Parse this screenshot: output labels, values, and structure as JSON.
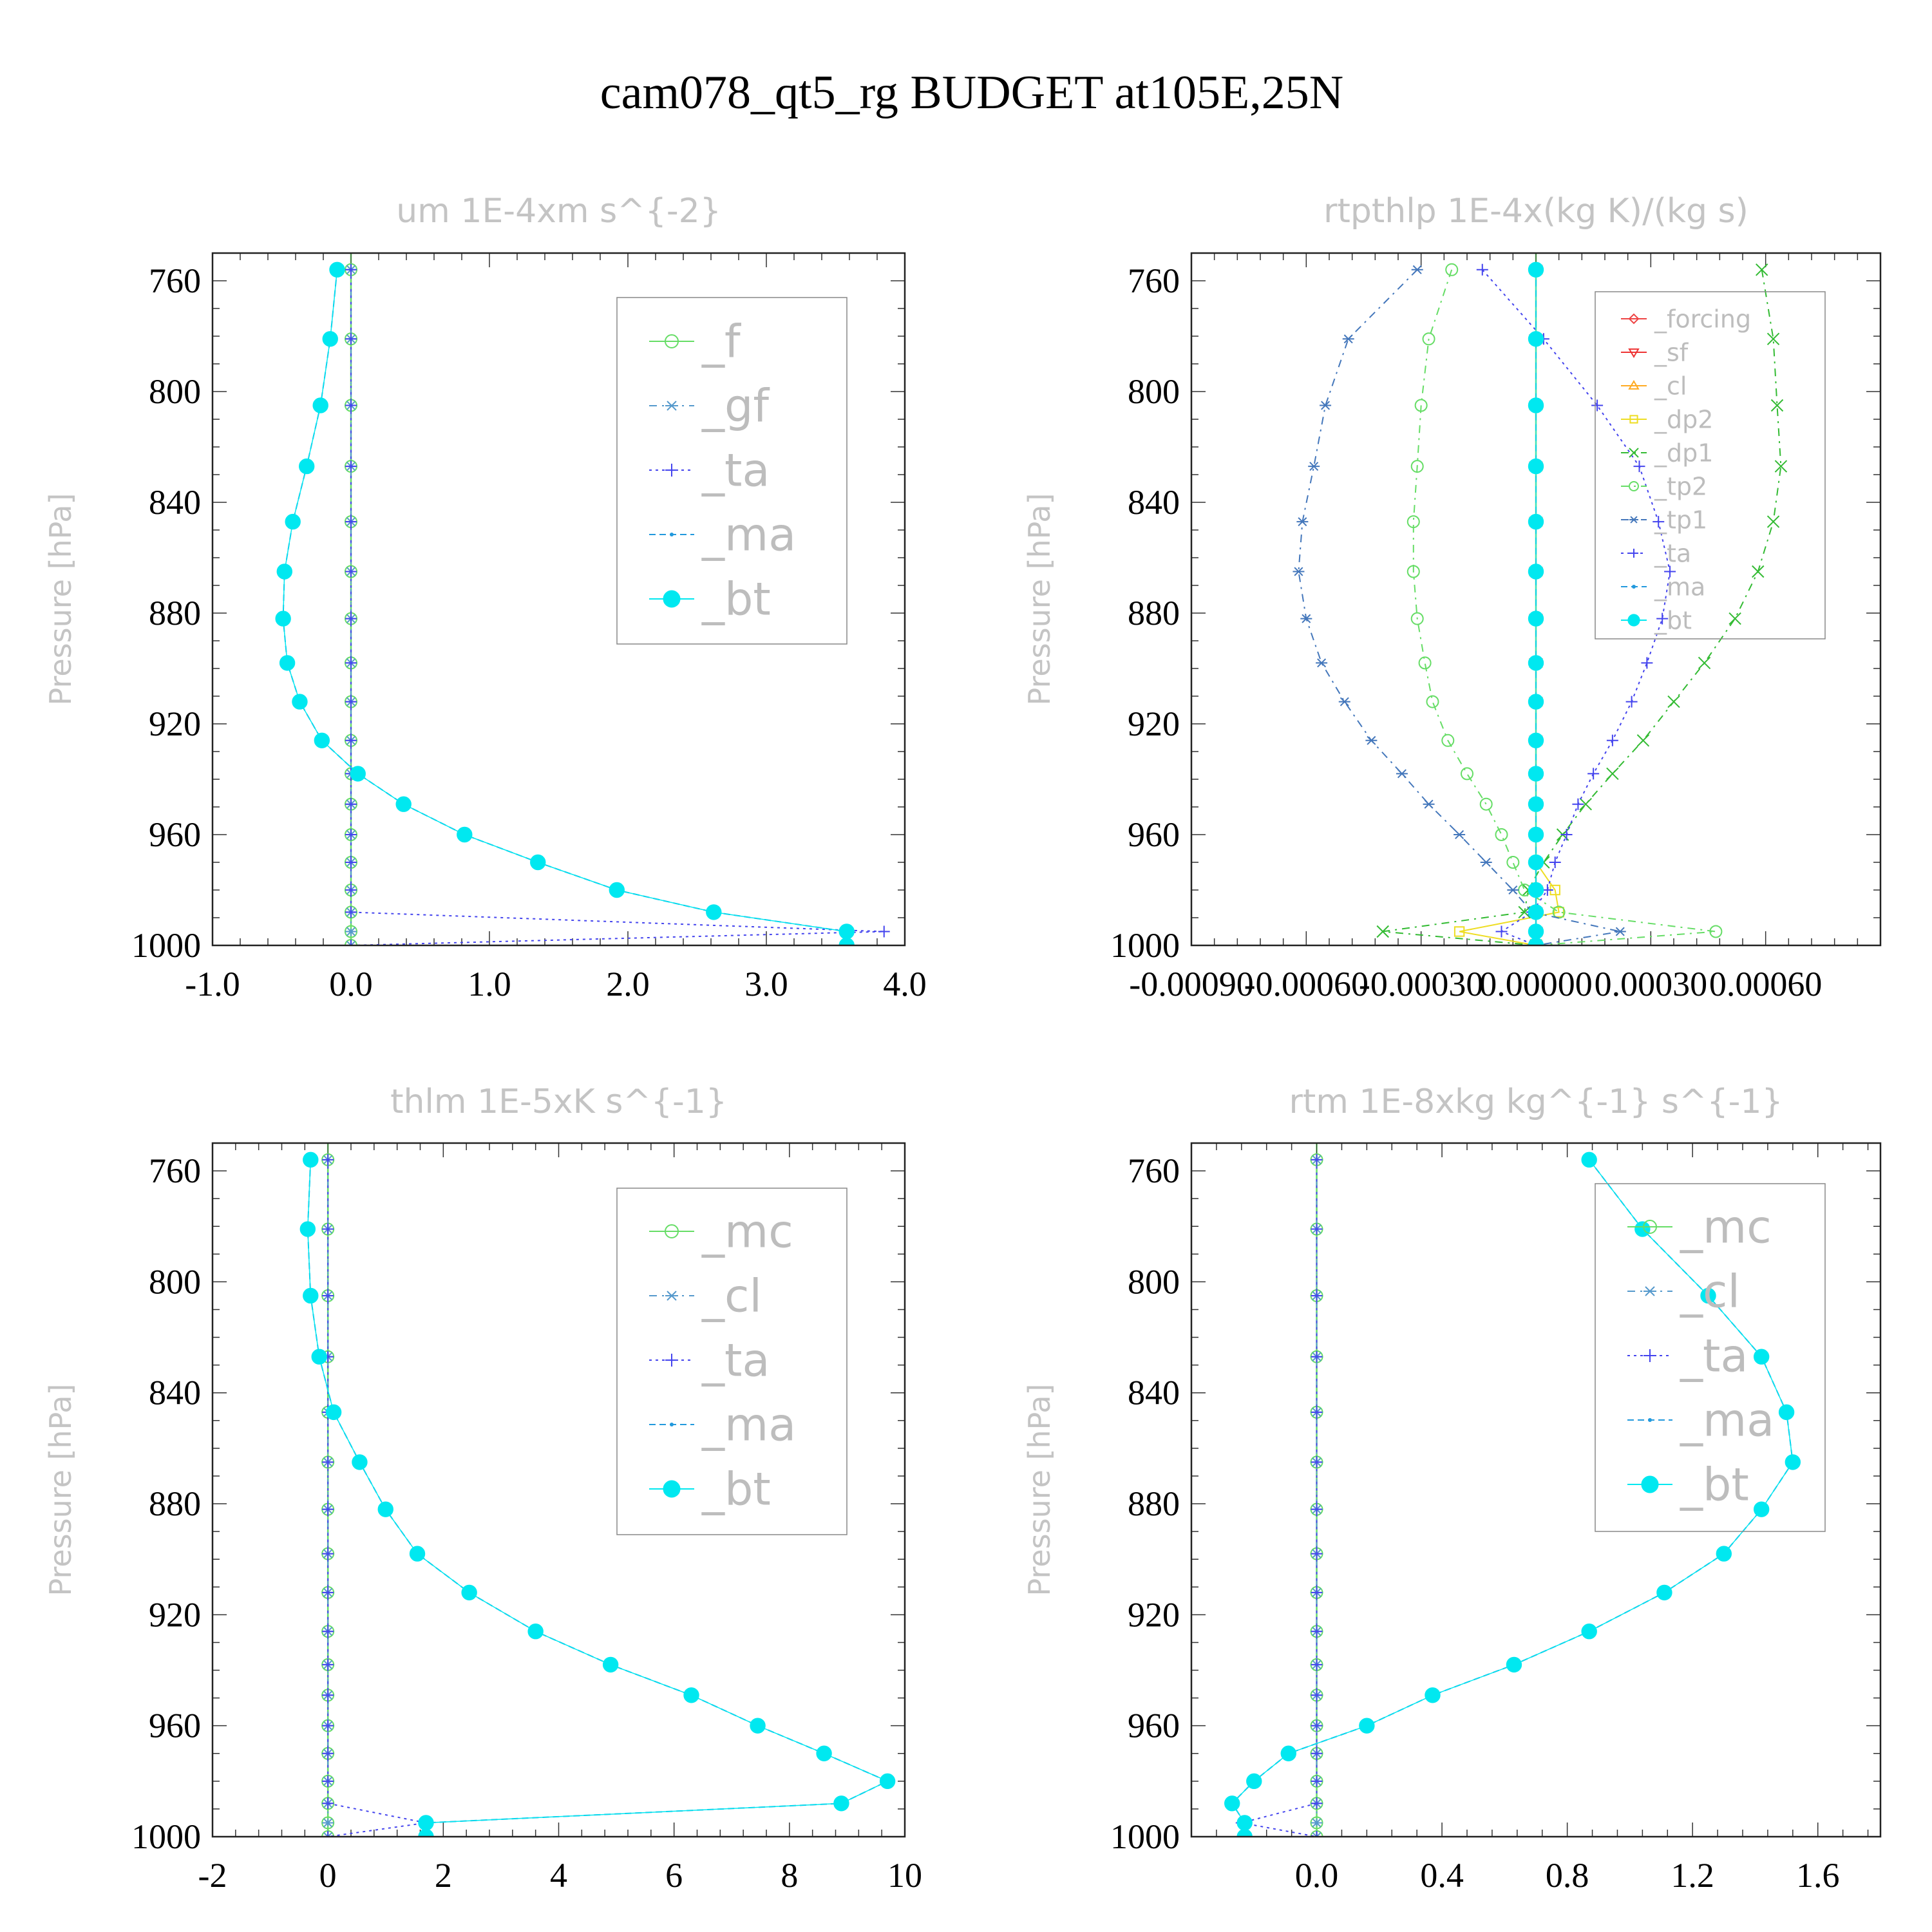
{
  "figure": {
    "title": "cam078_qt5_rg  BUDGET at105E,25N"
  },
  "chart_data": [
    {
      "type": "line",
      "title": "um   1E-4xm s^{-2}",
      "ylabel": "Pressure [hPa]",
      "xlim": [
        -1.0,
        4.0
      ],
      "ylim": [
        1000,
        750
      ],
      "y_ticks": [
        760,
        800,
        840,
        880,
        920,
        960,
        1000
      ],
      "x_ticks": [
        -1.0,
        0.0,
        1.0,
        2.0,
        3.0,
        4.0
      ],
      "x_tick_labels": [
        "-1.0",
        "0.0",
        "1.0",
        "2.0",
        "3.0",
        "4.0"
      ],
      "legend_position": "top-right",
      "levels": [
        756,
        781,
        805,
        827,
        847,
        865,
        882,
        898,
        912,
        926,
        938,
        949,
        960,
        970,
        980,
        988,
        995,
        1000
      ],
      "series": [
        {
          "name": "_f",
          "color": "#66dd66",
          "marker": "circle",
          "dash": "none",
          "values": [
            0,
            0,
            0,
            0,
            0,
            0,
            0,
            0,
            0,
            0,
            0,
            0,
            0,
            0,
            0,
            0,
            0,
            0
          ]
        },
        {
          "name": "_gf",
          "color": "#5599cc",
          "marker": "star",
          "dash": "12,8,3,8",
          "values": [
            0,
            0,
            0,
            0,
            0,
            0,
            0,
            0,
            0,
            0,
            0,
            0,
            0,
            0,
            0,
            0,
            0,
            0
          ]
        },
        {
          "name": "_ta",
          "color": "#4444ee",
          "marker": "plus",
          "dash": "4,6",
          "values": [
            0,
            0,
            0,
            0,
            0,
            0,
            0,
            0,
            0,
            0,
            0,
            0,
            0,
            0,
            0,
            0,
            3.85,
            0
          ]
        },
        {
          "name": "_ma",
          "color": "#2299dd",
          "marker": "dot",
          "dash": "10,6",
          "values": [
            -0.1,
            -0.15,
            -0.22,
            -0.32,
            -0.42,
            -0.48,
            -0.49,
            -0.46,
            -0.37,
            -0.21,
            0.05,
            0.38,
            0.82,
            1.35,
            1.92,
            2.62,
            3.58,
            3.58
          ]
        },
        {
          "name": "_bt",
          "color": "#00e8f0",
          "marker": "filled-circle",
          "dash": "none",
          "values": [
            -0.1,
            -0.15,
            -0.22,
            -0.32,
            -0.42,
            -0.48,
            -0.49,
            -0.46,
            -0.37,
            -0.21,
            0.05,
            0.38,
            0.82,
            1.35,
            1.92,
            2.62,
            3.58,
            3.58
          ]
        }
      ]
    },
    {
      "type": "line",
      "title": "rtpthlp   1E-4x(kg K)/(kg s)",
      "ylabel": "Pressure [hPa]",
      "xlim": [
        -0.0009,
        0.0009
      ],
      "ylim": [
        1000,
        750
      ],
      "y_ticks": [
        760,
        800,
        840,
        880,
        920,
        960,
        1000
      ],
      "x_ticks": [
        -0.0009,
        -0.0006,
        -0.0003,
        0.0,
        0.0003,
        0.0006
      ],
      "x_tick_labels": [
        "-0.00090",
        "-0.00060",
        "-0.00030",
        "0.00000",
        "0.00030",
        "0.00060"
      ],
      "legend_position": "top-right",
      "levels": [
        756,
        781,
        805,
        827,
        847,
        865,
        882,
        898,
        912,
        926,
        938,
        949,
        960,
        970,
        980,
        988,
        995,
        1000
      ],
      "series": [
        {
          "name": "_forcing",
          "color": "#ee4444",
          "marker": "diamond",
          "dash": "none",
          "values": [
            0,
            0,
            0,
            0,
            0,
            0,
            0,
            0,
            0,
            0,
            0,
            0,
            0,
            0,
            0,
            0,
            0,
            0
          ]
        },
        {
          "name": "_sf",
          "color": "#ee3333",
          "marker": "triangle-down",
          "dash": "none",
          "values": [
            0,
            0,
            0,
            0,
            0,
            0,
            0,
            0,
            0,
            0,
            0,
            0,
            0,
            0,
            0,
            0,
            0,
            0
          ]
        },
        {
          "name": "_cl",
          "color": "#ffaa22",
          "marker": "triangle-up",
          "dash": "none",
          "values": [
            0,
            0,
            0,
            0,
            0,
            0,
            0,
            0,
            0,
            0,
            0,
            0,
            0,
            0,
            0,
            0,
            0,
            0
          ]
        },
        {
          "name": "_dp2",
          "color": "#eedd22",
          "marker": "square",
          "dash": "none",
          "values": [
            0,
            0,
            0,
            0,
            0,
            0,
            0,
            0,
            0,
            0,
            0,
            0,
            0,
            0,
            5e-05,
            6e-05,
            -0.0002,
            0
          ]
        },
        {
          "name": "_dp1",
          "color": "#33bb33",
          "marker": "cross",
          "dash": "12,8,3,8",
          "values": [
            0.00059,
            0.00062,
            0.00063,
            0.00064,
            0.00062,
            0.00058,
            0.00052,
            0.00044,
            0.00036,
            0.00028,
            0.0002,
            0.00013,
            7e-05,
            2e-05,
            -2e-05,
            -3e-05,
            -0.0004,
            0
          ]
        },
        {
          "name": "_tp2",
          "color": "#66dd66",
          "marker": "circle",
          "dash": "12,8,3,8",
          "values": [
            -0.00022,
            -0.00028,
            -0.0003,
            -0.00031,
            -0.00032,
            -0.00032,
            -0.00031,
            -0.00029,
            -0.00027,
            -0.00023,
            -0.00018,
            -0.00013,
            -9e-05,
            -6e-05,
            -3e-05,
            6e-05,
            0.00047,
            0
          ]
        },
        {
          "name": "_tp1",
          "color": "#4477bb",
          "marker": "star",
          "dash": "12,8,3,8",
          "values": [
            -0.00031,
            -0.00049,
            -0.00055,
            -0.00058,
            -0.00061,
            -0.00062,
            -0.0006,
            -0.00056,
            -0.0005,
            -0.00043,
            -0.00035,
            -0.00028,
            -0.0002,
            -0.00013,
            -6e-05,
            -1e-05,
            0.00022,
            0
          ]
        },
        {
          "name": "_ta",
          "color": "#4444ee",
          "marker": "plus",
          "dash": "4,6",
          "values": [
            -0.00014,
            2e-05,
            0.00016,
            0.00027,
            0.00032,
            0.00035,
            0.00033,
            0.00029,
            0.00025,
            0.0002,
            0.00015,
            0.00011,
            8e-05,
            5e-05,
            3e-05,
            -1e-05,
            -9e-05,
            0
          ]
        },
        {
          "name": "_ma",
          "color": "#2299dd",
          "marker": "dot",
          "dash": "10,6",
          "values": [
            0,
            0,
            0,
            0,
            0,
            0,
            0,
            0,
            0,
            0,
            0,
            0,
            0,
            0,
            0,
            0,
            0,
            0
          ]
        },
        {
          "name": "_bt",
          "color": "#00e8f0",
          "marker": "filled-circle",
          "dash": "none",
          "values": [
            0,
            0,
            0,
            0,
            0,
            0,
            0,
            0,
            0,
            0,
            0,
            0,
            0,
            0,
            0,
            0,
            0,
            0
          ]
        }
      ]
    },
    {
      "type": "line",
      "title": "thlm   1E-5xK s^{-1}",
      "ylabel": "Pressure [hPa]",
      "xlim": [
        -2,
        10
      ],
      "ylim": [
        1000,
        750
      ],
      "y_ticks": [
        760,
        800,
        840,
        880,
        920,
        960,
        1000
      ],
      "x_ticks": [
        -2,
        0,
        2,
        4,
        6,
        8,
        10
      ],
      "x_tick_labels": [
        "-2",
        "0",
        "2",
        "4",
        "6",
        "8",
        "10"
      ],
      "legend_position": "top-right",
      "levels": [
        756,
        781,
        805,
        827,
        847,
        865,
        882,
        898,
        912,
        926,
        938,
        949,
        960,
        970,
        980,
        988,
        995,
        1000
      ],
      "series": [
        {
          "name": "_mc",
          "color": "#66dd66",
          "marker": "circle",
          "dash": "none",
          "values": [
            0,
            0,
            0,
            0,
            0,
            0,
            0,
            0,
            0,
            0,
            0,
            0,
            0,
            0,
            0,
            0,
            0,
            0
          ]
        },
        {
          "name": "_cl",
          "color": "#5599cc",
          "marker": "star",
          "dash": "12,8,3,8",
          "values": [
            0,
            0,
            0,
            0,
            0,
            0,
            0,
            0,
            0,
            0,
            0,
            0,
            0,
            0,
            0,
            0,
            0,
            0
          ]
        },
        {
          "name": "_ta",
          "color": "#4444ee",
          "marker": "plus",
          "dash": "4,6",
          "values": [
            0,
            0,
            0,
            0,
            0,
            0,
            0,
            0,
            0,
            0,
            0,
            0,
            0,
            0,
            0,
            0,
            1.7,
            0
          ]
        },
        {
          "name": "_ma",
          "color": "#2299dd",
          "marker": "dot",
          "dash": "10,6",
          "values": [
            -0.3,
            -0.35,
            -0.3,
            -0.15,
            0.1,
            0.55,
            1.0,
            1.55,
            2.45,
            3.6,
            4.9,
            6.3,
            7.45,
            8.6,
            9.7,
            8.9,
            1.7,
            1.7
          ]
        },
        {
          "name": "_bt",
          "color": "#00e8f0",
          "marker": "filled-circle",
          "dash": "none",
          "values": [
            -0.3,
            -0.35,
            -0.3,
            -0.15,
            0.1,
            0.55,
            1.0,
            1.55,
            2.45,
            3.6,
            4.9,
            6.3,
            7.45,
            8.6,
            9.7,
            8.9,
            1.7,
            1.7
          ]
        }
      ]
    },
    {
      "type": "line",
      "title": "rtm   1E-8xkg kg^{-1} s^{-1}",
      "ylabel": "Pressure [hPa]",
      "xlim": [
        -0.4,
        1.8
      ],
      "ylim": [
        1000,
        750
      ],
      "y_ticks": [
        760,
        800,
        840,
        880,
        920,
        960,
        1000
      ],
      "x_ticks": [
        0.0,
        0.4,
        0.8,
        1.2,
        1.6
      ],
      "x_tick_labels": [
        "0.0",
        "0.4",
        "0.8",
        "1.2",
        "1.6"
      ],
      "legend_position": "top-right",
      "levels": [
        756,
        781,
        805,
        827,
        847,
        865,
        882,
        898,
        912,
        926,
        938,
        949,
        960,
        970,
        980,
        988,
        995,
        1000
      ],
      "series": [
        {
          "name": "_mc",
          "color": "#66dd66",
          "marker": "circle",
          "dash": "none",
          "values": [
            0,
            0,
            0,
            0,
            0,
            0,
            0,
            0,
            0,
            0,
            0,
            0,
            0,
            0,
            0,
            0,
            0,
            0
          ]
        },
        {
          "name": "_cl",
          "color": "#5599cc",
          "marker": "star",
          "dash": "12,8,3,8",
          "values": [
            0,
            0,
            0,
            0,
            0,
            0,
            0,
            0,
            0,
            0,
            0,
            0,
            0,
            0,
            0,
            0,
            0,
            0
          ]
        },
        {
          "name": "_ta",
          "color": "#4444ee",
          "marker": "plus",
          "dash": "4,6",
          "values": [
            0,
            0,
            0,
            0,
            0,
            0,
            0,
            0,
            0,
            0,
            0,
            0,
            0,
            0,
            0,
            0,
            -0.24,
            0
          ]
        },
        {
          "name": "_ma",
          "color": "#2299dd",
          "marker": "dot",
          "dash": "10,6",
          "values": [
            0.87,
            1.04,
            1.25,
            1.42,
            1.5,
            1.52,
            1.42,
            1.3,
            1.11,
            0.87,
            0.63,
            0.37,
            0.16,
            -0.09,
            -0.2,
            -0.27,
            -0.23,
            -0.23
          ]
        },
        {
          "name": "_bt",
          "color": "#00e8f0",
          "marker": "filled-circle",
          "dash": "none",
          "values": [
            0.87,
            1.04,
            1.25,
            1.42,
            1.5,
            1.52,
            1.42,
            1.3,
            1.11,
            0.87,
            0.63,
            0.37,
            0.16,
            -0.09,
            -0.2,
            -0.27,
            -0.23,
            -0.23
          ]
        }
      ]
    }
  ]
}
